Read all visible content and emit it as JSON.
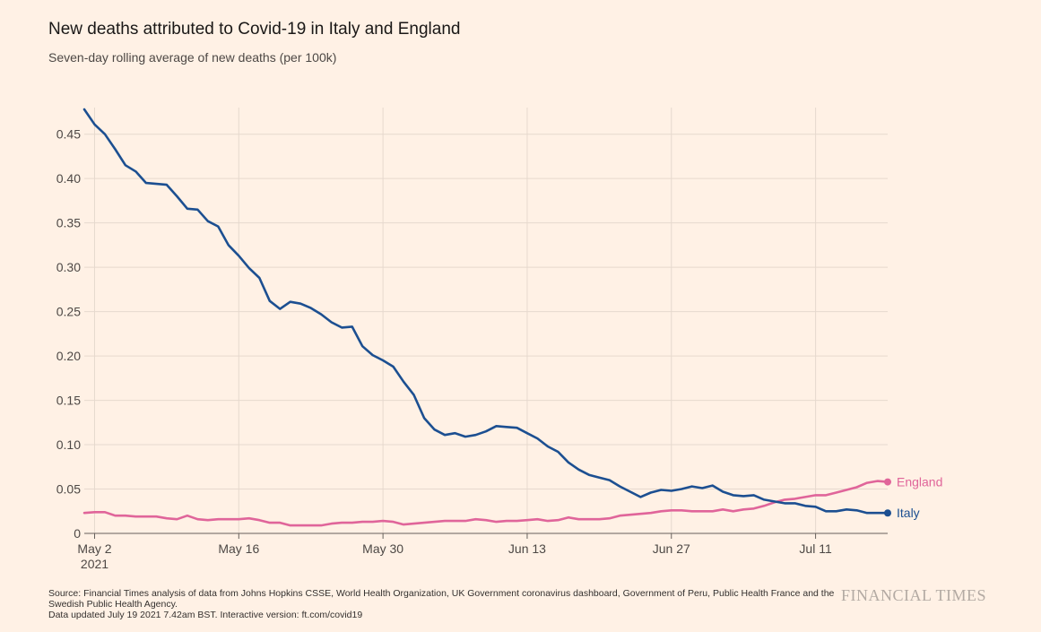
{
  "title": "New deaths attributed to Covid-19 in Italy and England",
  "subtitle": "Seven-day rolling average of new deaths (per 100k)",
  "footer": {
    "source": "Source: Financial Times analysis of data from Johns Hopkins CSSE, World Health Organization, UK Government coronavirus dashboard, Government of Peru, Public Health France and the Swedish Public Health Agency.",
    "updated": "Data updated July 19 2021 7.42am BST. Interactive version: ft.com/covid19"
  },
  "brand": "FINANCIAL TIMES",
  "colors": {
    "italy": "#1c4f91",
    "england": "#e0659a",
    "grid": "#e6d9ce",
    "background": "#fff1e5"
  },
  "chart_data": {
    "type": "line",
    "title": "New deaths attributed to Covid-19 in Italy and England",
    "subtitle": "Seven-day rolling average of new deaths (per 100k)",
    "x_start": "2021-05-01",
    "x_end": "2021-07-18",
    "ylim": [
      0,
      0.48
    ],
    "y_ticks": [
      0,
      0.05,
      0.1,
      0.15,
      0.2,
      0.25,
      0.3,
      0.35,
      0.4,
      0.45
    ],
    "y_tick_labels": [
      "0",
      "0.05",
      "0.10",
      "0.15",
      "0.20",
      "0.25",
      "0.30",
      "0.35",
      "0.40",
      "0.45"
    ],
    "x_ticks": [
      {
        "date": "2021-05-02",
        "label": "May 2",
        "sublabel": "2021"
      },
      {
        "date": "2021-05-16",
        "label": "May 16"
      },
      {
        "date": "2021-05-30",
        "label": "May 30"
      },
      {
        "date": "2021-06-13",
        "label": "Jun 13"
      },
      {
        "date": "2021-06-27",
        "label": "Jun 27"
      },
      {
        "date": "2021-07-11",
        "label": "Jul 11"
      }
    ],
    "grid": true,
    "legend": "end-of-line labels",
    "x": [
      "2021-05-01",
      "2021-05-02",
      "2021-05-03",
      "2021-05-04",
      "2021-05-05",
      "2021-05-06",
      "2021-05-07",
      "2021-05-08",
      "2021-05-09",
      "2021-05-10",
      "2021-05-11",
      "2021-05-12",
      "2021-05-13",
      "2021-05-14",
      "2021-05-15",
      "2021-05-16",
      "2021-05-17",
      "2021-05-18",
      "2021-05-19",
      "2021-05-20",
      "2021-05-21",
      "2021-05-22",
      "2021-05-23",
      "2021-05-24",
      "2021-05-25",
      "2021-05-26",
      "2021-05-27",
      "2021-05-28",
      "2021-05-29",
      "2021-05-30",
      "2021-05-31",
      "2021-06-01",
      "2021-06-02",
      "2021-06-03",
      "2021-06-04",
      "2021-06-05",
      "2021-06-06",
      "2021-06-07",
      "2021-06-08",
      "2021-06-09",
      "2021-06-10",
      "2021-06-11",
      "2021-06-12",
      "2021-06-13",
      "2021-06-14",
      "2021-06-15",
      "2021-06-16",
      "2021-06-17",
      "2021-06-18",
      "2021-06-19",
      "2021-06-20",
      "2021-06-21",
      "2021-06-22",
      "2021-06-23",
      "2021-06-24",
      "2021-06-25",
      "2021-06-26",
      "2021-06-27",
      "2021-06-28",
      "2021-06-29",
      "2021-06-30",
      "2021-07-01",
      "2021-07-02",
      "2021-07-03",
      "2021-07-04",
      "2021-07-05",
      "2021-07-06",
      "2021-07-07",
      "2021-07-08",
      "2021-07-09",
      "2021-07-10",
      "2021-07-11",
      "2021-07-12",
      "2021-07-13",
      "2021-07-14",
      "2021-07-15",
      "2021-07-16",
      "2021-07-17",
      "2021-07-18"
    ],
    "series": [
      {
        "name": "Italy",
        "color": "#1c4f91",
        "values": [
          0.478,
          0.461,
          0.45,
          0.433,
          0.415,
          0.408,
          0.395,
          0.394,
          0.393,
          0.38,
          0.366,
          0.365,
          0.352,
          0.346,
          0.325,
          0.313,
          0.299,
          0.288,
          0.262,
          0.253,
          0.261,
          0.259,
          0.254,
          0.247,
          0.238,
          0.232,
          0.233,
          0.211,
          0.201,
          0.195,
          0.188,
          0.171,
          0.156,
          0.13,
          0.117,
          0.111,
          0.113,
          0.109,
          0.111,
          0.115,
          0.121,
          0.12,
          0.119,
          0.113,
          0.107,
          0.098,
          0.092,
          0.08,
          0.072,
          0.066,
          0.063,
          0.06,
          0.053,
          0.047,
          0.041,
          0.046,
          0.049,
          0.048,
          0.05,
          0.053,
          0.051,
          0.054,
          0.047,
          0.043,
          0.042,
          0.043,
          0.038,
          0.036,
          0.034,
          0.034,
          0.031,
          0.03,
          0.025,
          0.025,
          0.027,
          0.026,
          0.023,
          0.023,
          0.023
        ]
      },
      {
        "name": "England",
        "color": "#e0659a",
        "values": [
          0.023,
          0.024,
          0.024,
          0.02,
          0.02,
          0.019,
          0.019,
          0.019,
          0.017,
          0.016,
          0.02,
          0.016,
          0.015,
          0.016,
          0.016,
          0.016,
          0.017,
          0.015,
          0.012,
          0.012,
          0.009,
          0.009,
          0.009,
          0.009,
          0.011,
          0.012,
          0.012,
          0.013,
          0.013,
          0.014,
          0.013,
          0.01,
          0.011,
          0.012,
          0.013,
          0.014,
          0.014,
          0.014,
          0.016,
          0.015,
          0.013,
          0.014,
          0.014,
          0.015,
          0.016,
          0.014,
          0.015,
          0.018,
          0.016,
          0.016,
          0.016,
          0.017,
          0.02,
          0.021,
          0.022,
          0.023,
          0.025,
          0.026,
          0.026,
          0.025,
          0.025,
          0.025,
          0.027,
          0.025,
          0.027,
          0.028,
          0.031,
          0.035,
          0.038,
          0.039,
          0.041,
          0.043,
          0.043,
          0.046,
          0.049,
          0.052,
          0.057,
          0.059,
          0.058
        ]
      }
    ]
  }
}
